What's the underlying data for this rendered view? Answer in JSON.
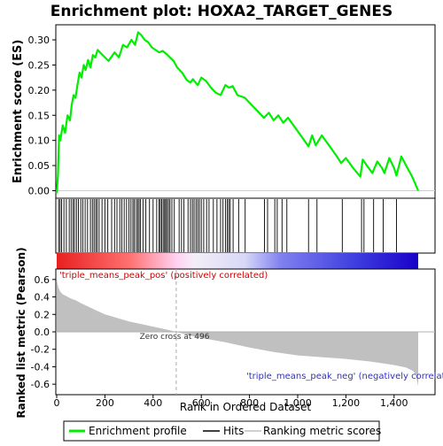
{
  "chart_data": {
    "type": "line",
    "title": "Enrichment plot: HOXA2_TARGET_GENES",
    "xlabel": "Rank in Ordered Dataset",
    "top_panel": {
      "ylabel": "Enrichment score (ES)",
      "ylim": [
        -0.015,
        0.33
      ],
      "yticks": [
        0.0,
        0.05,
        0.1,
        0.15,
        0.2,
        0.25,
        0.3
      ],
      "ytick_labels": [
        "0.00",
        "0.05",
        "0.10",
        "0.15",
        "0.20",
        "0.25",
        "0.30"
      ],
      "series": [
        {
          "name": "Enrichment profile",
          "color": "#00ee00",
          "x": [
            0,
            5,
            10,
            15,
            25,
            35,
            45,
            55,
            62,
            70,
            78,
            86,
            95,
            103,
            112,
            120,
            130,
            140,
            150,
            160,
            170,
            190,
            215,
            240,
            258,
            275,
            292,
            310,
            325,
            338,
            350,
            365,
            380,
            395,
            410,
            425,
            440,
            455,
            470,
            485,
            500,
            520,
            540,
            555,
            565,
            585,
            600,
            620,
            640,
            660,
            680,
            700,
            715,
            730,
            750,
            780,
            800,
            830,
            860,
            880,
            900,
            920,
            940,
            960,
            990,
            1020,
            1045,
            1060,
            1075,
            1100,
            1130,
            1160,
            1180,
            1200,
            1230,
            1260,
            1270,
            1290,
            1310,
            1330,
            1350,
            1360,
            1380,
            1400,
            1410,
            1430,
            1450,
            1475,
            1500
          ],
          "y": [
            -0.005,
            0.03,
            0.11,
            0.1,
            0.13,
            0.115,
            0.15,
            0.14,
            0.17,
            0.19,
            0.185,
            0.21,
            0.235,
            0.225,
            0.25,
            0.24,
            0.26,
            0.245,
            0.27,
            0.265,
            0.28,
            0.27,
            0.258,
            0.275,
            0.265,
            0.29,
            0.285,
            0.3,
            0.29,
            0.315,
            0.31,
            0.3,
            0.295,
            0.285,
            0.28,
            0.275,
            0.278,
            0.272,
            0.265,
            0.258,
            0.245,
            0.235,
            0.22,
            0.215,
            0.222,
            0.21,
            0.225,
            0.218,
            0.205,
            0.195,
            0.19,
            0.21,
            0.205,
            0.208,
            0.19,
            0.185,
            0.175,
            0.16,
            0.145,
            0.155,
            0.14,
            0.15,
            0.135,
            0.145,
            0.125,
            0.105,
            0.088,
            0.11,
            0.09,
            0.11,
            0.09,
            0.07,
            0.055,
            0.065,
            0.045,
            0.028,
            0.062,
            0.048,
            0.035,
            0.058,
            0.045,
            0.035,
            0.065,
            0.045,
            0.03,
            0.068,
            0.05,
            0.028,
            0.0
          ]
        }
      ]
    },
    "hits": {
      "name": "Hits",
      "x": [
        8,
        14,
        20,
        30,
        40,
        52,
        60,
        68,
        74,
        82,
        90,
        100,
        108,
        118,
        128,
        140,
        148,
        155,
        162,
        168,
        176,
        188,
        200,
        212,
        228,
        240,
        250,
        262,
        270,
        280,
        290,
        300,
        308,
        316,
        322,
        330,
        336,
        342,
        348,
        358,
        370,
        385,
        400,
        415,
        425,
        430,
        436,
        442,
        448,
        452,
        458,
        464,
        470,
        478,
        488,
        508,
        518,
        528,
        545,
        555,
        563,
        570,
        578,
        585,
        592,
        600,
        610,
        622,
        632,
        650,
        665,
        680,
        690,
        700,
        708,
        714,
        720,
        732,
        755,
        782,
        862,
        875,
        905,
        915,
        935,
        955,
        1045,
        1080,
        1185,
        1265,
        1275,
        1315,
        1355,
        1410
      ]
    },
    "bottom_panel": {
      "ylabel": "Ranked list metric (Pearson)",
      "ylim": [
        -0.72,
        0.72
      ],
      "yticks": [
        -0.6,
        -0.4,
        -0.2,
        0.0,
        0.2,
        0.4,
        0.6
      ],
      "ytick_labels": [
        "-0.6",
        "-0.4",
        "-0.2",
        "0.0",
        "0.2",
        "0.4",
        "0.6"
      ],
      "series": [
        {
          "name": "Ranking metric scores",
          "color": "#c0c0c0",
          "x": [
            0,
            3,
            8,
            15,
            25,
            40,
            60,
            80,
            100,
            130,
            160,
            200,
            250,
            300,
            350,
            400,
            450,
            496,
            550,
            600,
            700,
            800,
            900,
            1000,
            1100,
            1200,
            1300,
            1400,
            1450,
            1480,
            1490,
            1500
          ],
          "y": [
            0.62,
            0.55,
            0.5,
            0.46,
            0.43,
            0.41,
            0.38,
            0.36,
            0.33,
            0.29,
            0.25,
            0.2,
            0.16,
            0.12,
            0.09,
            0.06,
            0.03,
            0.0,
            -0.04,
            -0.07,
            -0.12,
            -0.18,
            -0.23,
            -0.27,
            -0.29,
            -0.31,
            -0.34,
            -0.38,
            -0.41,
            -0.45,
            -0.5,
            -0.62
          ]
        }
      ],
      "zero_cross_label": "Zero cross at 496",
      "zero_cross_x": 496,
      "pos_label": "'triple_means_peak_pos' (positively correlated)",
      "neg_label": "'triple_means_peak_neg' (negatively correlated)"
    },
    "xlim": [
      0,
      1500
    ],
    "xticks": [
      0,
      200,
      400,
      600,
      800,
      1000,
      1200,
      1400
    ],
    "xtick_labels": [
      "0",
      "200",
      "400",
      "600",
      "800",
      "1,000",
      "1,200",
      "1,400"
    ],
    "legend": {
      "placement": "bottom",
      "entries": [
        "Enrichment profile",
        "Hits",
        "Ranking metric scores"
      ]
    },
    "colors": {
      "profile": "#00ee00",
      "hits": "#000000",
      "metric": "#c0c0c0",
      "gradient_pos": "#ff0000",
      "gradient_neg": "#0000ff"
    }
  }
}
